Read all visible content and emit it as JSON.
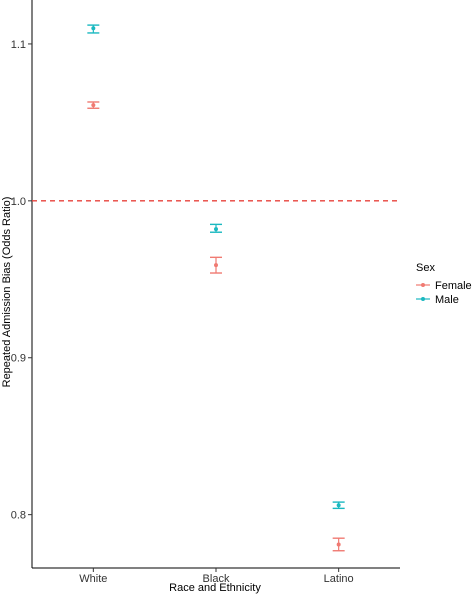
{
  "chart_data": {
    "type": "scatter",
    "title": "",
    "xlabel": "Race and Ethnicity",
    "ylabel": "Repeated Admission Bias (Odds Ratio)",
    "categories": [
      "White",
      "Black",
      "Latino"
    ],
    "ylim": [
      0.766,
      1.128
    ],
    "yticks": [
      0.8,
      0.9,
      1.0,
      1.1
    ],
    "ytick_labels": [
      "0.8",
      "0.9",
      "1.0",
      "1.1"
    ],
    "grid": false,
    "reference_line": {
      "y": 1.0,
      "style": "dashed",
      "color": "#e8423b"
    },
    "legend": {
      "title": "Sex",
      "position": "right"
    },
    "series": [
      {
        "name": "Female",
        "color": "#f07a72",
        "values": [
          1.061,
          0.959,
          0.781
        ],
        "lower": [
          1.059,
          0.954,
          0.777
        ],
        "upper": [
          1.063,
          0.964,
          0.785
        ]
      },
      {
        "name": "Male",
        "color": "#1ab8c0",
        "values": [
          1.11,
          0.982,
          0.806
        ],
        "lower": [
          1.107,
          0.98,
          0.804
        ],
        "upper": [
          1.112,
          0.985,
          0.808
        ]
      }
    ]
  }
}
